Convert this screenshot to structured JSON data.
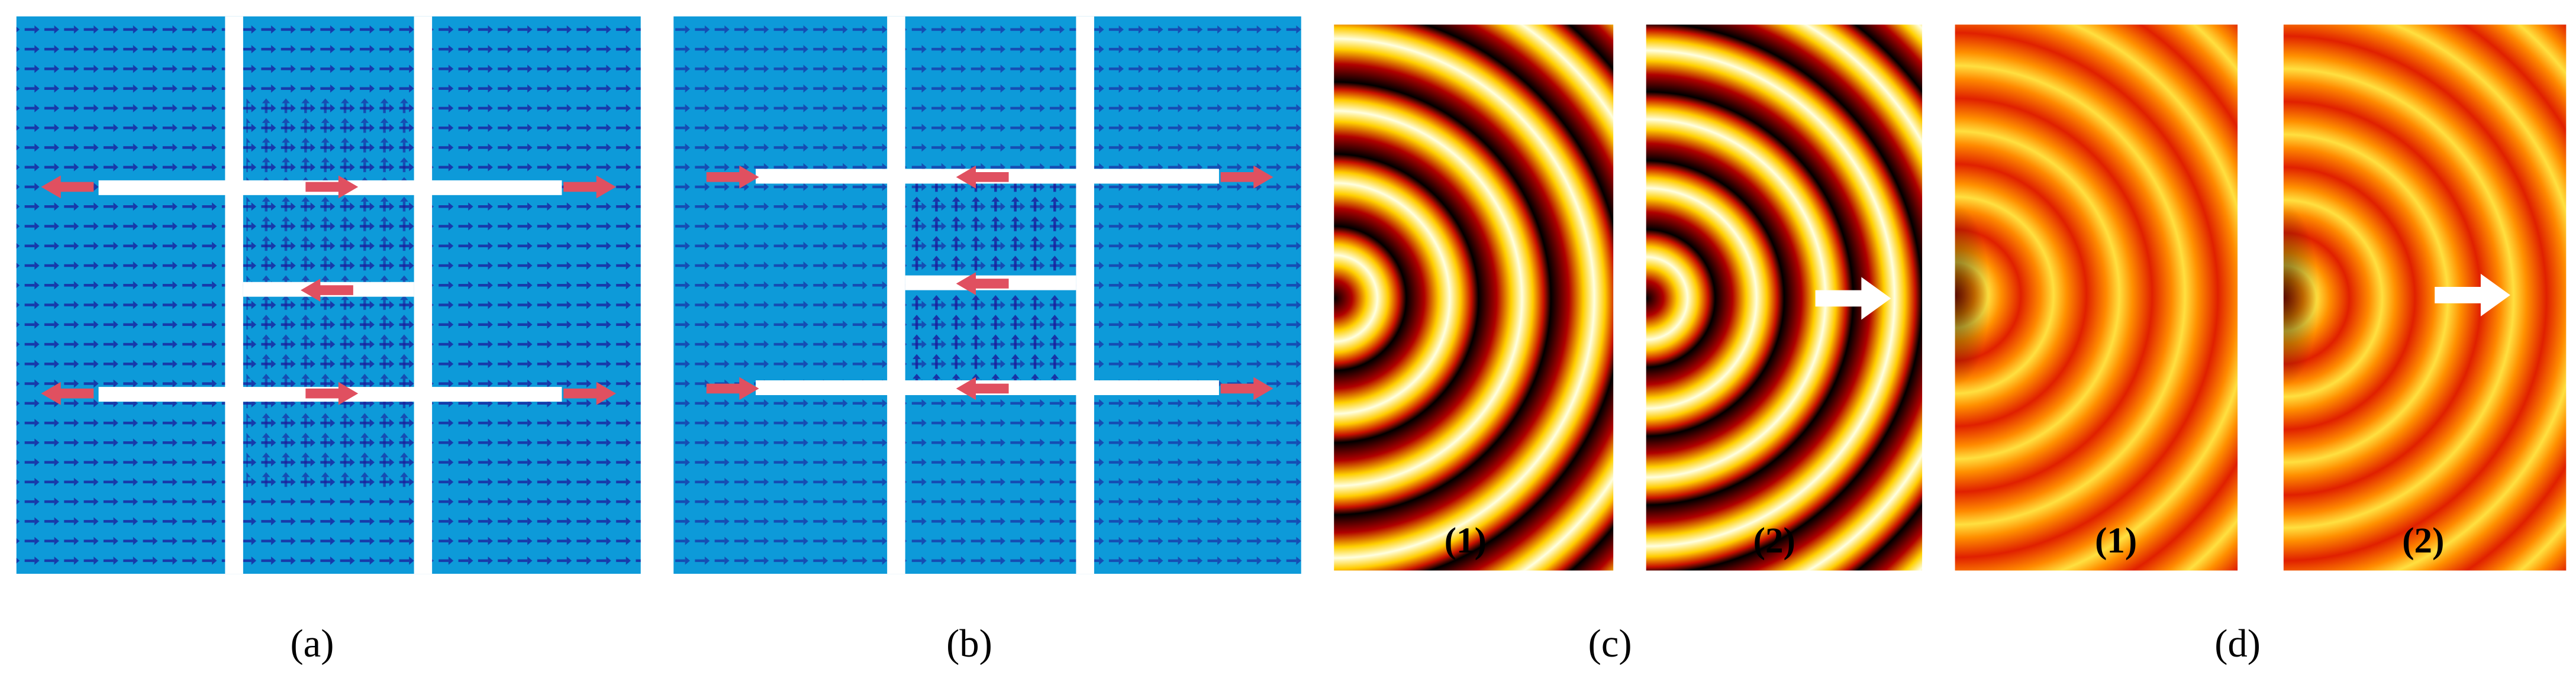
{
  "panels": [
    {
      "label": "(a)"
    },
    {
      "label": "(b)"
    },
    {
      "label": "(c)",
      "subpanels": [
        "(1)",
        "(2)"
      ]
    },
    {
      "label": "(d)",
      "subpanels": [
        "(1)",
        "(2)"
      ]
    }
  ]
}
